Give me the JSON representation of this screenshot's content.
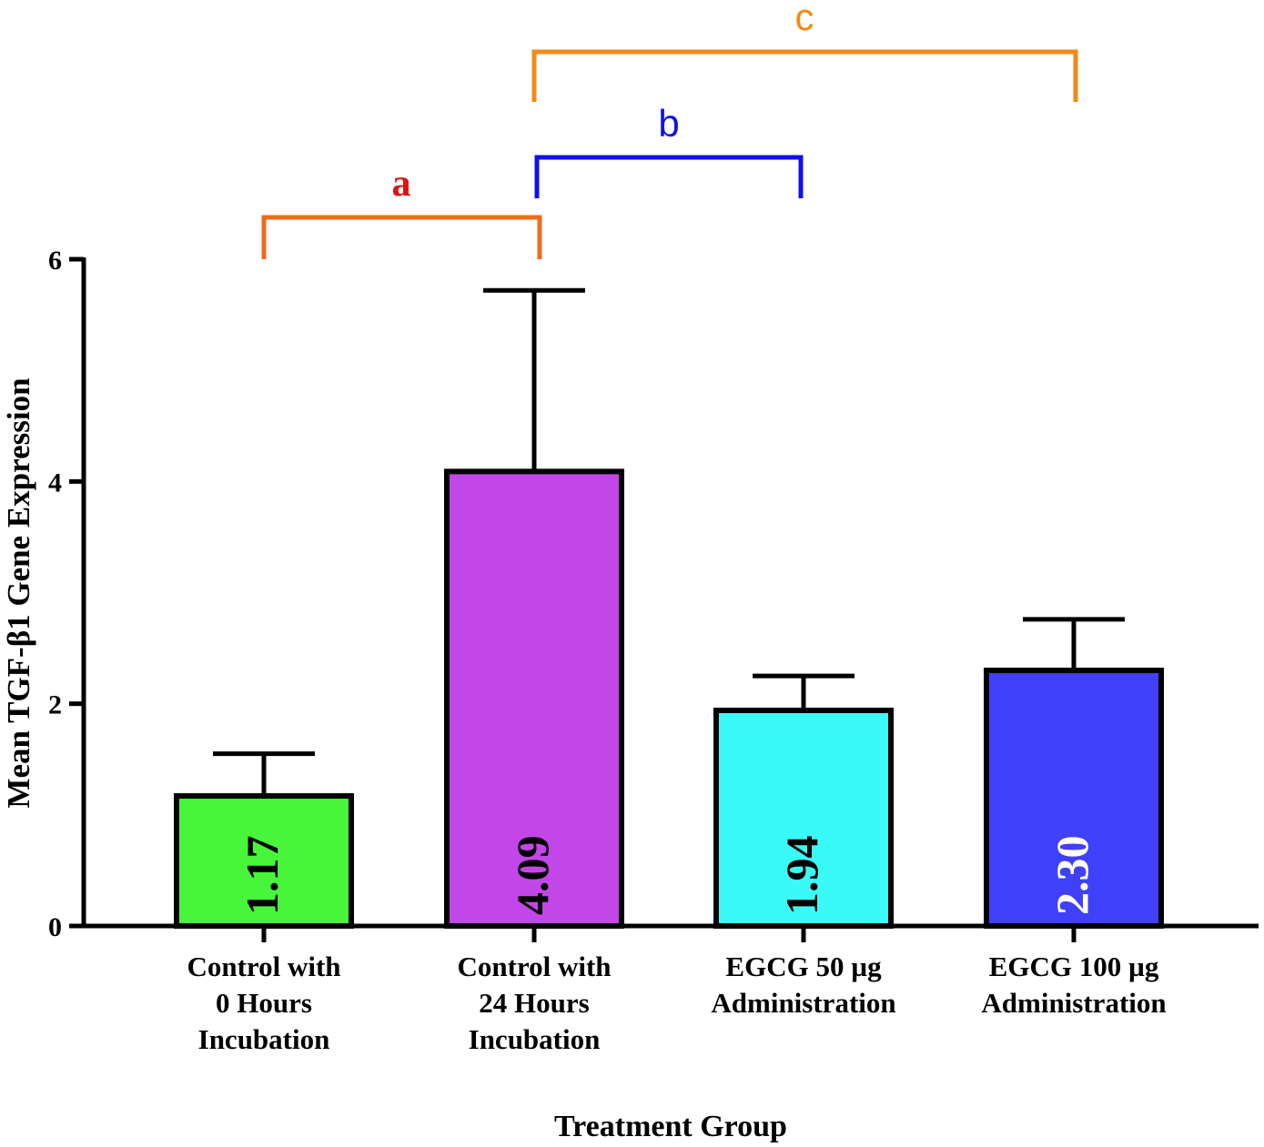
{
  "chart_data": {
    "type": "bar",
    "title": "",
    "xlabel": "Treatment Group",
    "ylabel": "Mean TGF-β1 Gene Expression",
    "ylim": [
      0,
      6
    ],
    "yticks": [
      "0",
      "2",
      "4",
      "6"
    ],
    "grid": false,
    "categories": [
      [
        "Control with",
        "0 Hours",
        "Incubation"
      ],
      [
        "Control with",
        "24 Hours",
        "Incubation"
      ],
      [
        "EGCG 50 µg",
        "Administration"
      ],
      [
        "EGCG 100 µg",
        "Administration"
      ]
    ],
    "values": [
      1.17,
      4.09,
      1.94,
      2.3
    ],
    "error_upper": [
      1.55,
      5.72,
      2.25,
      2.76
    ],
    "data_labels": [
      "1.17",
      "4.09",
      "1.94",
      "2.30"
    ],
    "bar_colors": [
      "#47f53b",
      "#c246e8",
      "#3afaf7",
      "#4040fb"
    ],
    "label_colors": [
      "#000000",
      "#000000",
      "#000000",
      "#ffffff"
    ],
    "significance": [
      {
        "label": "a",
        "from": 0,
        "to": 1,
        "color": "#f06a1c",
        "label_color": "#e01212"
      },
      {
        "label": "b",
        "from": 1,
        "to": 2,
        "color": "#1010ee",
        "label_color": "#1010ee"
      },
      {
        "label": "c",
        "from": 1,
        "to": 3,
        "color": "#f28a18",
        "label_color": "#f28a18"
      }
    ]
  }
}
